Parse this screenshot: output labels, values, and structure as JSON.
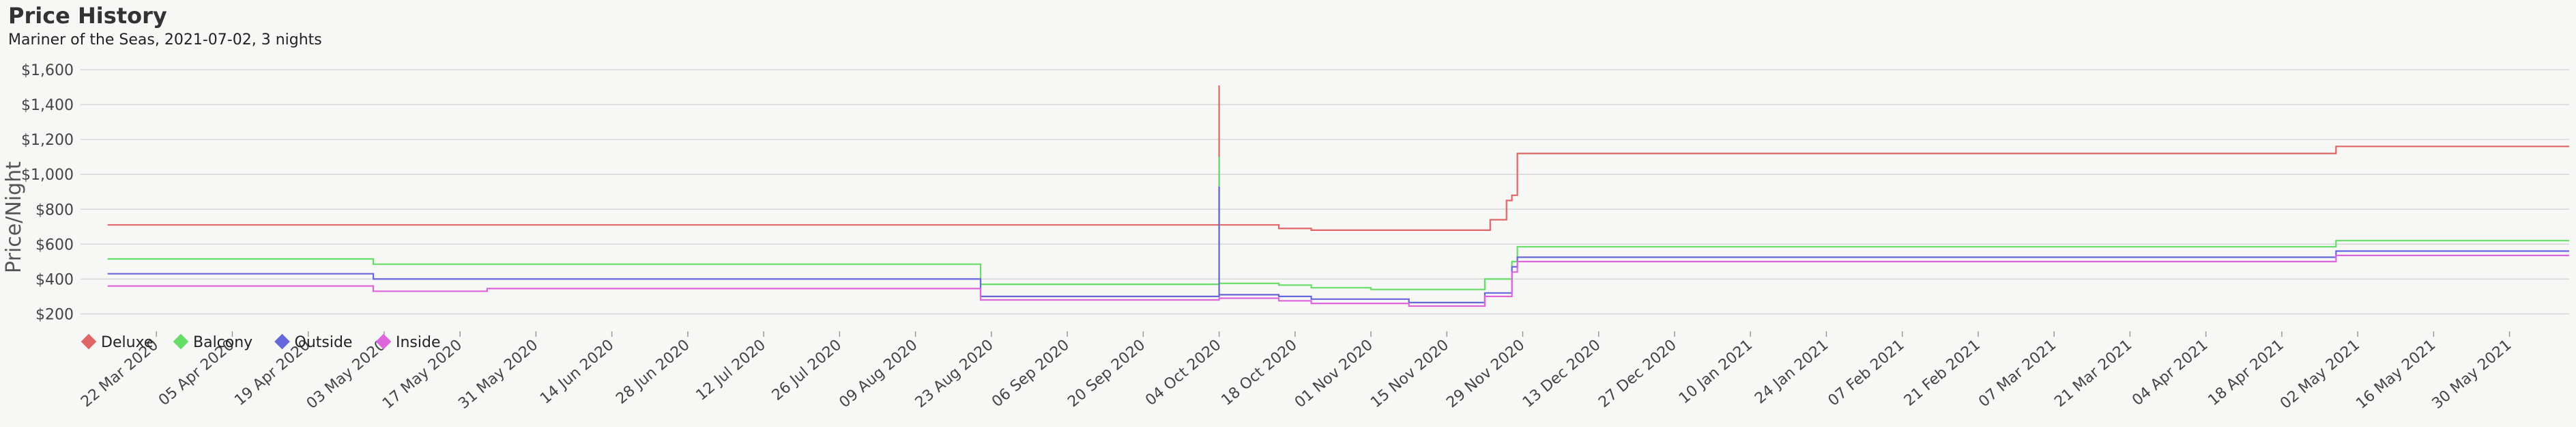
{
  "header": {
    "title": "Price History",
    "subtitle": "Mariner of the Seas, 2021-07-02, 3 nights"
  },
  "chart_data": {
    "type": "line",
    "title": "Price History",
    "subtitle": "Mariner of the Seas, 2021-07-02, 3 nights",
    "xlabel": "",
    "ylabel": "Price/Night",
    "step": true,
    "grid": true,
    "legend_position": "bottom-left",
    "xlim": [
      "2020-03-08",
      "2021-06-10"
    ],
    "ylim": [
      100,
      1600
    ],
    "y_ticks": [
      200,
      400,
      600,
      800,
      1000,
      1200,
      1400,
      1600
    ],
    "y_tick_labels": [
      "$200",
      "$400",
      "$600",
      "$800",
      "$1,000",
      "$1,200",
      "$1,400",
      "$1,600"
    ],
    "x_ticks": [
      "2020-03-22",
      "2020-04-05",
      "2020-04-19",
      "2020-05-03",
      "2020-05-17",
      "2020-05-31",
      "2020-06-14",
      "2020-06-28",
      "2020-07-12",
      "2020-07-26",
      "2020-08-09",
      "2020-08-23",
      "2020-09-06",
      "2020-09-20",
      "2020-10-04",
      "2020-10-18",
      "2020-11-01",
      "2020-11-15",
      "2020-11-29",
      "2020-12-13",
      "2020-12-27",
      "2021-01-10",
      "2021-01-24",
      "2021-02-07",
      "2021-02-21",
      "2021-03-07",
      "2021-03-21",
      "2021-04-04",
      "2021-04-18",
      "2021-05-02",
      "2021-05-16",
      "2021-05-30"
    ],
    "x_tick_labels": [
      "22 Mar 2020",
      "05 Apr 2020",
      "19 Apr 2020",
      "03 May 2020",
      "17 May 2020",
      "31 May 2020",
      "14 Jun 2020",
      "28 Jun 2020",
      "12 Jul 2020",
      "26 Jul 2020",
      "09 Aug 2020",
      "23 Aug 2020",
      "06 Sep 2020",
      "20 Sep 2020",
      "04 Oct 2020",
      "18 Oct 2020",
      "01 Nov 2020",
      "15 Nov 2020",
      "29 Nov 2020",
      "13 Dec 2020",
      "27 Dec 2020",
      "10 Jan 2021",
      "24 Jan 2021",
      "07 Feb 2021",
      "21 Feb 2021",
      "07 Mar 2021",
      "21 Mar 2021",
      "04 Apr 2021",
      "18 Apr 2021",
      "02 May 2021",
      "16 May 2021",
      "30 May 2021"
    ],
    "series": [
      {
        "name": "Deluxe",
        "color": "#e06666",
        "points": [
          [
            "2020-03-13",
            710
          ],
          [
            "2020-10-15",
            690
          ],
          [
            "2020-10-21",
            680
          ],
          [
            "2020-11-23",
            740
          ],
          [
            "2020-11-26",
            850
          ],
          [
            "2020-11-27",
            880
          ],
          [
            "2020-11-28",
            1120
          ],
          [
            "2021-04-28",
            1160
          ],
          [
            "2021-06-10",
            1160
          ]
        ]
      },
      {
        "name": "Balcony",
        "color": "#66dd66",
        "points": [
          [
            "2020-03-13",
            515
          ],
          [
            "2020-05-01",
            485
          ],
          [
            "2020-08-21",
            370
          ],
          [
            "2020-10-04",
            375
          ],
          [
            "2020-10-15",
            365
          ],
          [
            "2020-10-21",
            350
          ],
          [
            "2020-11-01",
            340
          ],
          [
            "2020-11-22",
            400
          ],
          [
            "2020-11-27",
            500
          ],
          [
            "2020-11-28",
            585
          ],
          [
            "2021-04-28",
            620
          ],
          [
            "2021-06-10",
            620
          ]
        ]
      },
      {
        "name": "Outside",
        "color": "#6666dd",
        "points": [
          [
            "2020-03-13",
            430
          ],
          [
            "2020-05-01",
            400
          ],
          [
            "2020-08-21",
            300
          ],
          [
            "2020-10-04",
            310
          ],
          [
            "2020-10-15",
            300
          ],
          [
            "2020-10-21",
            285
          ],
          [
            "2020-11-08",
            265
          ],
          [
            "2020-11-22",
            320
          ],
          [
            "2020-11-27",
            470
          ],
          [
            "2020-11-28",
            525
          ],
          [
            "2021-04-28",
            560
          ],
          [
            "2021-06-10",
            560
          ]
        ]
      },
      {
        "name": "Inside",
        "color": "#dd66dd",
        "points": [
          [
            "2020-03-13",
            360
          ],
          [
            "2020-05-01",
            330
          ],
          [
            "2020-05-22",
            345
          ],
          [
            "2020-08-21",
            280
          ],
          [
            "2020-10-04",
            290
          ],
          [
            "2020-10-15",
            275
          ],
          [
            "2020-10-21",
            260
          ],
          [
            "2020-11-08",
            245
          ],
          [
            "2020-11-22",
            300
          ],
          [
            "2020-11-27",
            440
          ],
          [
            "2020-11-28",
            500
          ],
          [
            "2021-04-28",
            535
          ],
          [
            "2021-06-10",
            535
          ]
        ]
      }
    ],
    "spikes": [
      {
        "series": "Deluxe",
        "date": "2020-10-04",
        "value": 1510
      },
      {
        "series": "Balcony",
        "date": "2020-10-04",
        "value": 1100
      },
      {
        "series": "Outside",
        "date": "2020-10-04",
        "value": 930
      }
    ]
  }
}
